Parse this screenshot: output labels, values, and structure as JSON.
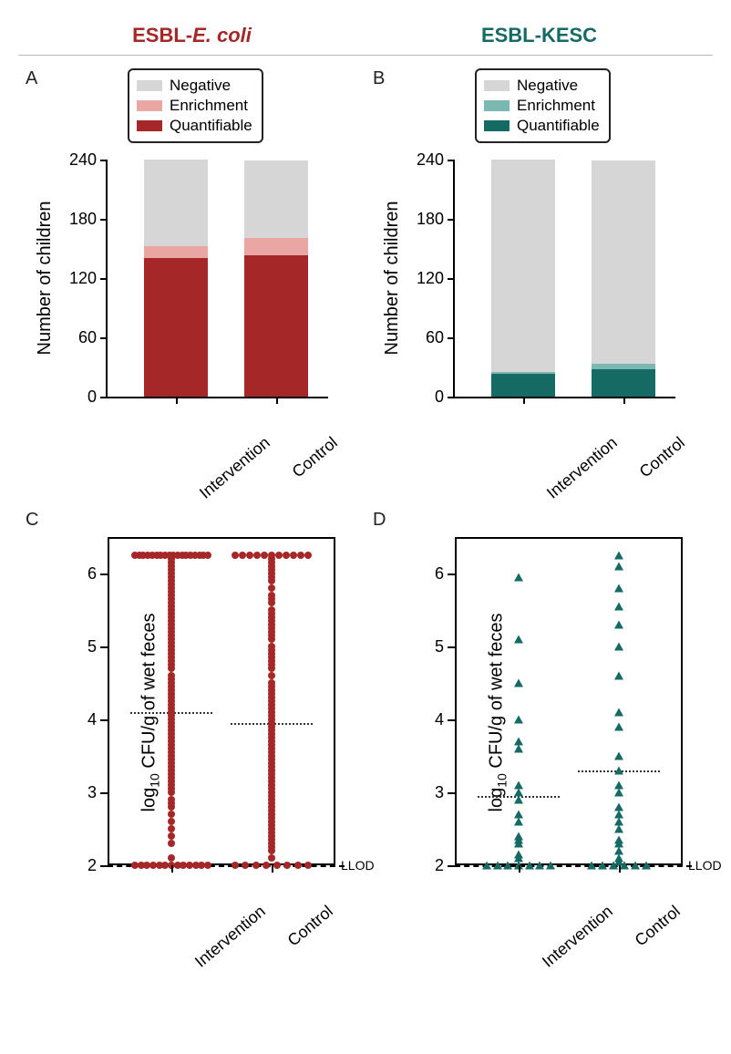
{
  "titles": {
    "left_prefix": "ESBL-",
    "left_italic": "E. coli",
    "right": "ESBL-KESC"
  },
  "colors": {
    "ecoli_dark": "#a52728",
    "ecoli_light": "#e9a6a2",
    "kesc_dark": "#166a64",
    "kesc_light": "#7ab8b1",
    "neutral": "#d6d6d6",
    "border": "#000000"
  },
  "legend_labels": [
    "Negative",
    "Enrichment",
    "Quantifiable"
  ],
  "bar_panels": {
    "ylabel": "Number of children",
    "ymax": 240,
    "ytick_step": 60,
    "categories": [
      "Intervention",
      "Control"
    ],
    "A": {
      "colors_key": "ecoli",
      "values": [
        {
          "quantifiable": 140,
          "enrichment": 12,
          "negative": 88
        },
        {
          "quantifiable": 143,
          "enrichment": 18,
          "negative": 78
        }
      ]
    },
    "B": {
      "colors_key": "kesc",
      "values": [
        {
          "quantifiable": 23,
          "enrichment": 2,
          "negative": 215
        },
        {
          "quantifiable": 28,
          "enrichment": 5,
          "negative": 206
        }
      ]
    }
  },
  "scatter": {
    "ylabel_prefix": "log",
    "ylabel_sub": "10",
    "ylabel_suffix": " CFU/g of wet feces",
    "ymin": 2,
    "ymax": 6.5,
    "yticks": [
      2,
      3,
      4,
      5,
      6
    ],
    "llod_y": 2,
    "llod_label": "LLOD",
    "categories": [
      "Intervention",
      "Control"
    ],
    "C": {
      "marker": "circle",
      "color": "#a52728",
      "means": [
        4.1,
        3.95
      ],
      "groups": [
        [
          2,
          2,
          2,
          2,
          2,
          2,
          2,
          2,
          2,
          2,
          2,
          2.0,
          2.0,
          2.1,
          2.3,
          2.4,
          2.5,
          2.6,
          2.7,
          2.8,
          2.85,
          2.9,
          3.0,
          3.05,
          3.1,
          3.15,
          3.2,
          3.25,
          3.3,
          3.35,
          3.4,
          3.45,
          3.5,
          3.55,
          3.6,
          3.65,
          3.7,
          3.75,
          3.8,
          3.85,
          3.9,
          3.95,
          4.0,
          4.05,
          4.1,
          4.15,
          4.2,
          4.25,
          4.3,
          4.35,
          4.4,
          4.45,
          4.5,
          4.55,
          4.6,
          4.7,
          4.75,
          4.8,
          4.85,
          4.9,
          4.95,
          5.0,
          5.05,
          5.1,
          5.15,
          5.2,
          5.25,
          5.3,
          5.35,
          5.4,
          5.45,
          5.5,
          5.55,
          5.6,
          5.65,
          5.7,
          5.75,
          5.8,
          5.85,
          5.9,
          5.95,
          6.0,
          6.05,
          6.1,
          6.15,
          6.2,
          6.25,
          6.25,
          6.25,
          6.25,
          6.25,
          6.25,
          6.25,
          6.25,
          6.25,
          6.25,
          6.25,
          6.25,
          6.25,
          6.25,
          6.25,
          6.25,
          6.25,
          6.25
        ],
        [
          2,
          2,
          2,
          2,
          2,
          2,
          2,
          2,
          2.1,
          2.2,
          2.25,
          2.3,
          2.35,
          2.4,
          2.45,
          2.5,
          2.55,
          2.6,
          2.65,
          2.7,
          2.75,
          2.8,
          2.85,
          2.9,
          2.95,
          3.0,
          3.05,
          3.1,
          3.15,
          3.2,
          3.25,
          3.3,
          3.35,
          3.4,
          3.45,
          3.5,
          3.55,
          3.6,
          3.65,
          3.7,
          3.75,
          3.8,
          3.85,
          3.9,
          3.95,
          4.0,
          4.05,
          4.1,
          4.15,
          4.2,
          4.25,
          4.3,
          4.35,
          4.4,
          4.45,
          4.5,
          4.6,
          4.7,
          4.75,
          4.8,
          4.85,
          4.9,
          4.95,
          5.0,
          5.1,
          5.15,
          5.2,
          5.25,
          5.3,
          5.35,
          5.4,
          5.45,
          5.5,
          5.6,
          5.65,
          5.7,
          5.8,
          5.9,
          5.95,
          6.0,
          6.05,
          6.1,
          6.15,
          6.2,
          6.25,
          6.25,
          6.25,
          6.25,
          6.25,
          6.25,
          6.25,
          6.25,
          6.25,
          6.25,
          6.25
        ]
      ]
    },
    "D": {
      "marker": "triangle",
      "color": "#166a64",
      "means": [
        2.95,
        3.3
      ],
      "groups": [
        [
          2,
          2,
          2,
          2,
          2,
          2,
          2,
          2.1,
          2.15,
          2.3,
          2.35,
          2.4,
          2.6,
          2.7,
          2.9,
          3.0,
          3.1,
          3.6,
          3.7,
          4.0,
          4.5,
          5.1,
          5.95
        ],
        [
          2,
          2,
          2,
          2,
          2,
          2,
          2.05,
          2.1,
          2.2,
          2.3,
          2.35,
          2.5,
          2.6,
          2.7,
          2.8,
          3.0,
          3.1,
          3.3,
          3.5,
          3.9,
          4.1,
          4.6,
          5.0,
          5.3,
          5.55,
          5.8,
          6.1,
          6.25
        ]
      ]
    }
  }
}
